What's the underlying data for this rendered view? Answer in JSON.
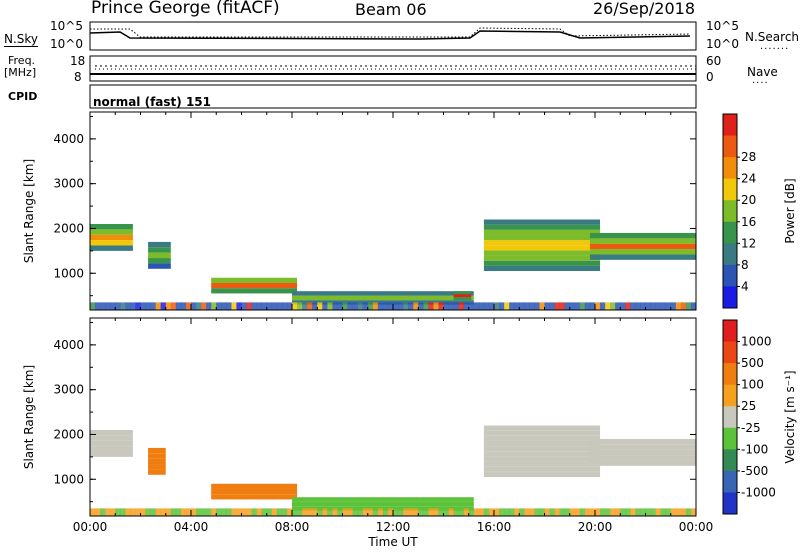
{
  "header": {
    "title": "Prince George (fitACF)",
    "beam": "Beam 06",
    "date": "26/Sep/2018"
  },
  "noise_panel": {
    "left_label": "N.Sky",
    "left_ticks": [
      "10^5",
      "10^0"
    ],
    "right_ticks": [
      "10^5",
      "10^0"
    ],
    "right_label": "N.Search"
  },
  "freq_panel": {
    "left_label_line1": "Freq.",
    "left_label_line2": "[MHz]",
    "left_ticks": [
      "18",
      "8"
    ],
    "right_ticks": [
      "60",
      "0"
    ],
    "right_label": "Nave"
  },
  "cpid_panel": {
    "label": "CPID",
    "value": "normal (fast) 151"
  },
  "chart_data": [
    {
      "type": "heatmap",
      "name": "power",
      "ylabel": "Slant Range [km]",
      "yticks": [
        1000,
        2000,
        3000,
        4000
      ],
      "ylim": [
        180,
        4600
      ],
      "xlim": [
        0,
        24
      ],
      "colorbar_label": "Power [dB]",
      "colorbar_ticks": [
        "4",
        "8",
        "12",
        "16",
        "20",
        "24",
        "28"
      ],
      "colors": [
        "#1b1be6",
        "#2a55b4",
        "#3a7a82",
        "#38944b",
        "#7cbb2a",
        "#f2c80b",
        "#f28c0b",
        "#ec5a11",
        "#e0201a"
      ],
      "bands": [
        {
          "t0": 0.0,
          "t1": 1.7,
          "r0": 1500,
          "r1": 2100,
          "level": 0.75
        },
        {
          "t0": 2.3,
          "t1": 3.2,
          "r0": 1100,
          "r1": 1700,
          "level": 0.45
        },
        {
          "t0": 4.8,
          "t1": 8.2,
          "r0": 550,
          "r1": 900,
          "level": 0.85
        },
        {
          "t0": 8.0,
          "t1": 15.2,
          "r0": 300,
          "r1": 600,
          "level": 0.55
        },
        {
          "t0": 14.4,
          "t1": 15.1,
          "r0": 400,
          "r1": 600,
          "level": 0.9
        },
        {
          "t0": 15.6,
          "t1": 20.2,
          "r0": 1050,
          "r1": 2200,
          "level": 0.7
        },
        {
          "t0": 19.8,
          "t1": 24.0,
          "r0": 1300,
          "r1": 1900,
          "level": 0.75
        }
      ]
    },
    {
      "type": "heatmap",
      "name": "velocity",
      "ylabel": "Slant Range [km]",
      "yticks": [
        1000,
        2000,
        3000,
        4000
      ],
      "ylim": [
        180,
        4600
      ],
      "xlim": [
        0,
        24
      ],
      "xticks": [
        "00:00",
        "04:00",
        "08:00",
        "12:00",
        "16:00",
        "20:00",
        "00:00"
      ],
      "xlabel": "Time UT",
      "colorbar_label": "Velocity [m s⁻¹]",
      "colorbar_ticks": [
        "1000",
        "500",
        "100",
        "25",
        "-25",
        "-100",
        "-500",
        "-1000"
      ],
      "colors": [
        "#2233c8",
        "#3a64b4",
        "#338a55",
        "#5cc23a",
        "#c8c8bd",
        "#f5a01e",
        "#f07d10",
        "#ec4614",
        "#e01e1e"
      ],
      "bands": [
        {
          "t0": 0.0,
          "t1": 1.7,
          "r0": 1500,
          "r1": 2100,
          "color": "#c8c8bd"
        },
        {
          "t0": 2.3,
          "t1": 3.0,
          "r0": 1100,
          "r1": 1700,
          "color": "#f07d10"
        },
        {
          "t0": 4.8,
          "t1": 8.2,
          "r0": 550,
          "r1": 900,
          "color": "#f07d10"
        },
        {
          "t0": 8.0,
          "t1": 15.2,
          "r0": 300,
          "r1": 600,
          "color": "#5cc23a"
        },
        {
          "t0": 15.6,
          "t1": 20.2,
          "r0": 1050,
          "r1": 2200,
          "color": "#c8c8bd"
        },
        {
          "t0": 19.8,
          "t1": 24.0,
          "r0": 1300,
          "r1": 1900,
          "color": "#c8c8bd"
        }
      ]
    }
  ]
}
